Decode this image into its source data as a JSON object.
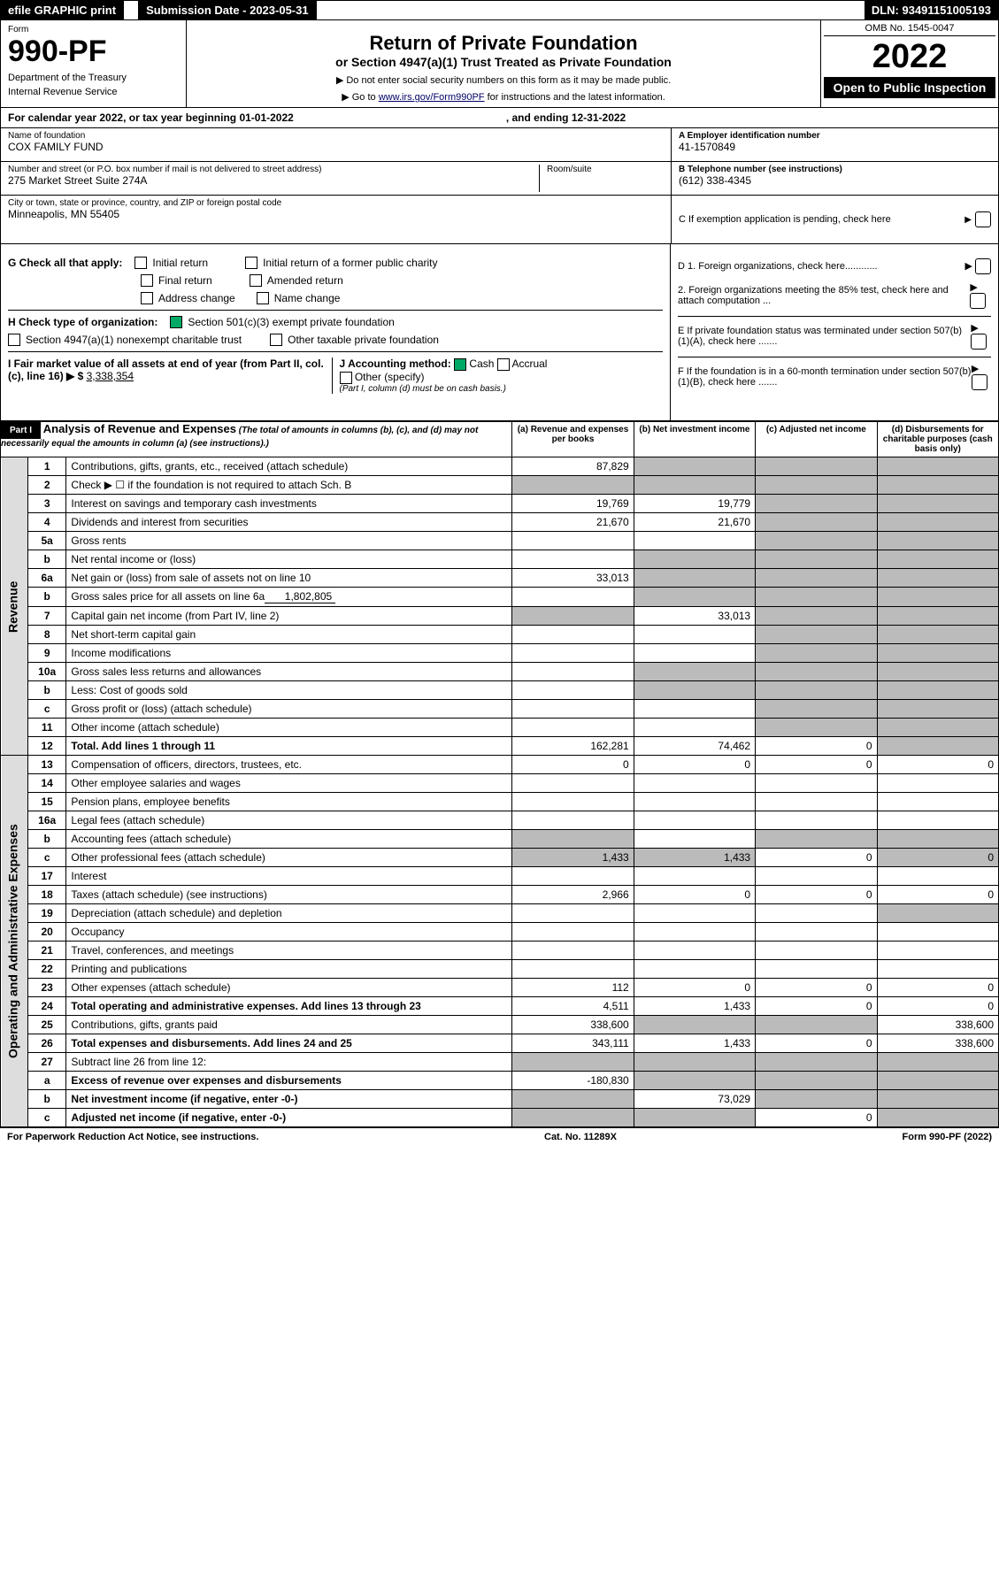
{
  "top": {
    "efile": "efile GRAPHIC print",
    "sub_label": "Submission Date - 2023-05-31",
    "dln": "DLN: 93491151005193"
  },
  "head": {
    "form_label": "Form",
    "form_num": "990-PF",
    "dept": "Department of the Treasury",
    "irs": "Internal Revenue Service",
    "title": "Return of Private Foundation",
    "subtitle": "or Section 4947(a)(1) Trust Treated as Private Foundation",
    "note1": "▶ Do not enter social security numbers on this form as it may be made public.",
    "note2_pre": "▶ Go to ",
    "note2_link": "www.irs.gov/Form990PF",
    "note2_post": " for instructions and the latest information.",
    "omb": "OMB No. 1545-0047",
    "year": "2022",
    "open_pub": "Open to Public Inspection"
  },
  "cal_year": {
    "text": "For calendar year 2022, or tax year beginning 01-01-2022",
    "ending": ", and ending 12-31-2022"
  },
  "org": {
    "name_label": "Name of foundation",
    "name": "COX FAMILY FUND",
    "addr_label": "Number and street (or P.O. box number if mail is not delivered to street address)",
    "addr": "275 Market Street Suite 274A",
    "room_label": "Room/suite",
    "city_label": "City or town, state or province, country, and ZIP or foreign postal code",
    "city": "Minneapolis, MN  55405",
    "ein_label": "A Employer identification number",
    "ein": "41-1570849",
    "phone_label": "B Telephone number (see instructions)",
    "phone": "(612) 338-4345",
    "c_label": "C If exemption application is pending, check here"
  },
  "checks": {
    "g_label": "G Check all that apply:",
    "initial": "Initial return",
    "initial_former": "Initial return of a former public charity",
    "final": "Final return",
    "amended": "Amended return",
    "addr_change": "Address change",
    "name_change": "Name change",
    "h_label": "H Check type of organization:",
    "h_501c3": "Section 501(c)(3) exempt private foundation",
    "h_4947": "Section 4947(a)(1) nonexempt charitable trust",
    "h_other_tax": "Other taxable private foundation",
    "i_label": "I Fair market value of all assets at end of year (from Part II, col. (c), line 16) ▶ $",
    "i_val": "3,338,354",
    "j_label": "J Accounting method:",
    "j_cash": "Cash",
    "j_accrual": "Accrual",
    "j_other": "Other (specify)",
    "j_note": "(Part I, column (d) must be on cash basis.)",
    "d1": "D 1. Foreign organizations, check here............",
    "d2": "2. Foreign organizations meeting the 85% test, check here and attach computation ...",
    "e": "E  If private foundation status was terminated under section 507(b)(1)(A), check here .......",
    "f": "F  If the foundation is in a 60-month termination under section 507(b)(1)(B), check here .......",
    "arrow": "▶"
  },
  "part1": {
    "label": "Part I",
    "title": "Analysis of Revenue and Expenses",
    "note": "(The total of amounts in columns (b), (c), and (d) may not necessarily equal the amounts in column (a) (see instructions).)",
    "col_a": "(a)  Revenue and expenses per books",
    "col_b": "(b)  Net investment income",
    "col_c": "(c)  Adjusted net income",
    "col_d": "(d)  Disbursements for charitable purposes (cash basis only)",
    "vert_rev": "Revenue",
    "vert_exp": "Operating and Administrative Expenses",
    "rows": [
      {
        "n": "1",
        "d": "Contributions, gifts, grants, etc., received (attach schedule)",
        "a": "87,829"
      },
      {
        "n": "2",
        "d": "Check ▶ ☐ if the foundation is not required to attach Sch. B"
      },
      {
        "n": "3",
        "d": "Interest on savings and temporary cash investments",
        "a": "19,769",
        "b": "19,779"
      },
      {
        "n": "4",
        "d": "Dividends and interest from securities",
        "a": "21,670",
        "b": "21,670"
      },
      {
        "n": "5a",
        "d": "Gross rents"
      },
      {
        "n": "b",
        "d": "Net rental income or (loss)"
      },
      {
        "n": "6a",
        "d": "Net gain or (loss) from sale of assets not on line 10",
        "a": "33,013"
      },
      {
        "n": "b",
        "d": "Gross sales price for all assets on line 6a",
        "inline": "1,802,805"
      },
      {
        "n": "7",
        "d": "Capital gain net income (from Part IV, line 2)",
        "b": "33,013"
      },
      {
        "n": "8",
        "d": "Net short-term capital gain"
      },
      {
        "n": "9",
        "d": "Income modifications"
      },
      {
        "n": "10a",
        "d": "Gross sales less returns and allowances"
      },
      {
        "n": "b",
        "d": "Less: Cost of goods sold"
      },
      {
        "n": "c",
        "d": "Gross profit or (loss) (attach schedule)"
      },
      {
        "n": "11",
        "d": "Other income (attach schedule)"
      },
      {
        "n": "12",
        "d": "Total. Add lines 1 through 11",
        "a": "162,281",
        "b": "74,462",
        "c": "0",
        "bold": true
      },
      {
        "n": "13",
        "d": "Compensation of officers, directors, trustees, etc.",
        "a": "0",
        "b": "0",
        "c": "0",
        "dd": "0"
      },
      {
        "n": "14",
        "d": "Other employee salaries and wages"
      },
      {
        "n": "15",
        "d": "Pension plans, employee benefits"
      },
      {
        "n": "16a",
        "d": "Legal fees (attach schedule)"
      },
      {
        "n": "b",
        "d": "Accounting fees (attach schedule)"
      },
      {
        "n": "c",
        "d": "Other professional fees (attach schedule)",
        "a": "1,433",
        "b": "1,433",
        "c": "0",
        "dd": "0"
      },
      {
        "n": "17",
        "d": "Interest"
      },
      {
        "n": "18",
        "d": "Taxes (attach schedule) (see instructions)",
        "a": "2,966",
        "b": "0",
        "c": "0",
        "dd": "0"
      },
      {
        "n": "19",
        "d": "Depreciation (attach schedule) and depletion"
      },
      {
        "n": "20",
        "d": "Occupancy"
      },
      {
        "n": "21",
        "d": "Travel, conferences, and meetings"
      },
      {
        "n": "22",
        "d": "Printing and publications"
      },
      {
        "n": "23",
        "d": "Other expenses (attach schedule)",
        "a": "112",
        "b": "0",
        "c": "0",
        "dd": "0"
      },
      {
        "n": "24",
        "d": "Total operating and administrative expenses. Add lines 13 through 23",
        "a": "4,511",
        "b": "1,433",
        "c": "0",
        "dd": "0",
        "bold": true
      },
      {
        "n": "25",
        "d": "Contributions, gifts, grants paid",
        "a": "338,600",
        "dd": "338,600"
      },
      {
        "n": "26",
        "d": "Total expenses and disbursements. Add lines 24 and 25",
        "a": "343,111",
        "b": "1,433",
        "c": "0",
        "dd": "338,600",
        "bold": true
      },
      {
        "n": "27",
        "d": "Subtract line 26 from line 12:"
      },
      {
        "n": "a",
        "d": "Excess of revenue over expenses and disbursements",
        "a": "-180,830",
        "bold": true
      },
      {
        "n": "b",
        "d": "Net investment income (if negative, enter -0-)",
        "b": "73,029",
        "bold": true
      },
      {
        "n": "c",
        "d": "Adjusted net income (if negative, enter -0-)",
        "c": "0",
        "bold": true
      }
    ]
  },
  "footer": {
    "left": "For Paperwork Reduction Act Notice, see instructions.",
    "mid": "Cat. No. 11289X",
    "right": "Form 990-PF (2022)"
  },
  "shading": {
    "row_d_shade": [
      "1",
      "2",
      "3",
      "4",
      "5a",
      "b",
      "6a",
      "7",
      "8",
      "9",
      "10a",
      "11",
      "12"
    ],
    "row_c_shade_27": [
      "a",
      "b"
    ],
    "colors": {
      "shaded": "#bbbbbb",
      "vert_bg": "#dddddd",
      "checked": "#00aa66",
      "link": "#000066"
    }
  }
}
